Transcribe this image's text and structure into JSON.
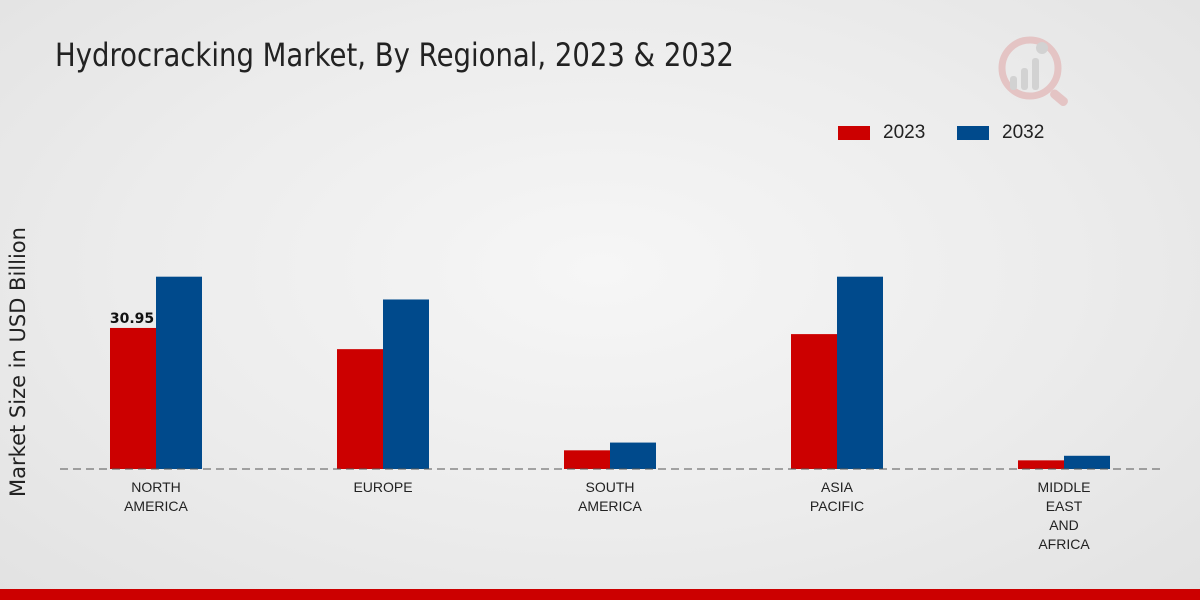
{
  "chart_data": {
    "type": "bar",
    "title": "Hydrocracking Market, By Regional, 2023 & 2032",
    "ylabel": "Market Size in USD Billion",
    "xlabel": "",
    "categories": [
      [
        "NORTH",
        "AMERICA"
      ],
      [
        "EUROPE"
      ],
      [
        "SOUTH",
        "AMERICA"
      ],
      [
        "ASIA",
        "PACIFIC"
      ],
      [
        "MIDDLE",
        "EAST",
        "AND",
        "AFRICA"
      ]
    ],
    "series": [
      {
        "name": "2023",
        "color": "#cc0000",
        "values": [
          30.95,
          26.3,
          4.1,
          29.6,
          1.9
        ]
      },
      {
        "name": "2032",
        "color": "#004a8c",
        "values": [
          42.2,
          37.2,
          5.8,
          42.2,
          2.9
        ]
      }
    ],
    "data_labels": [
      {
        "series": 0,
        "index": 0,
        "text": "30.95"
      }
    ],
    "ylim": [
      0,
      70
    ],
    "grid": false,
    "baseline": "dashed",
    "legend_position": "top-right"
  },
  "legend": {
    "items": [
      {
        "label": "2023",
        "color": "#cc0000"
      },
      {
        "label": "2032",
        "color": "#004a8c"
      }
    ]
  },
  "logo": {
    "icon": "market-research-logo-icon"
  }
}
